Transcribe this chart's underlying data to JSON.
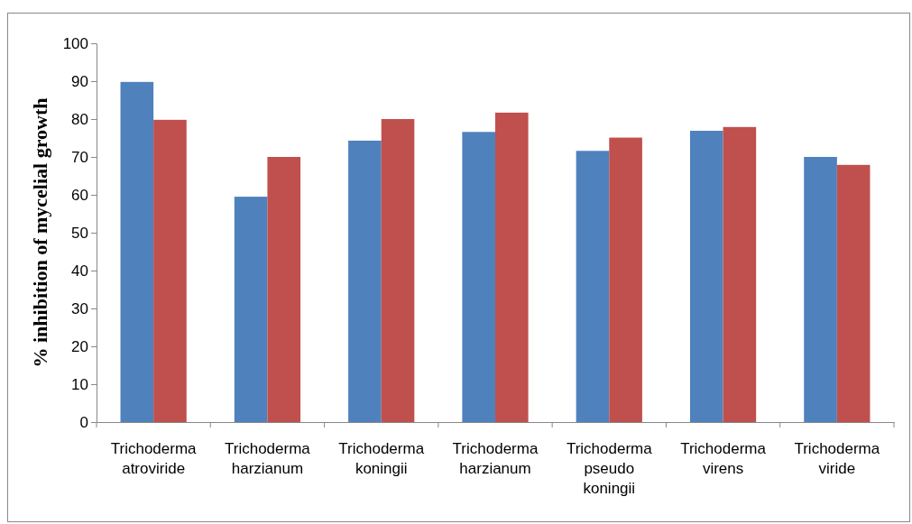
{
  "chart_data": {
    "type": "bar",
    "ylabel": "% inhibition of mycelial growth",
    "categories": [
      "Trichoderma atroviride",
      "Trichoderma harzianum",
      "Trichoderma koningii",
      "Trichoderma harzianum",
      "Trichoderma pseudo koningii",
      "Trichoderma virens",
      "Trichoderma viride"
    ],
    "series": [
      {
        "color": "#4f81bd",
        "values": [
          89.8,
          59.5,
          74.3,
          76.6,
          71.6,
          76.9,
          70
        ]
      },
      {
        "color": "#c0504d",
        "values": [
          79.8,
          70,
          80,
          81.7,
          75.1,
          77.9,
          67.9
        ]
      }
    ],
    "ylim": [
      0,
      100
    ],
    "yticks": [
      0,
      10,
      20,
      30,
      40,
      50,
      60,
      70,
      80,
      90,
      100
    ],
    "grid": false
  }
}
